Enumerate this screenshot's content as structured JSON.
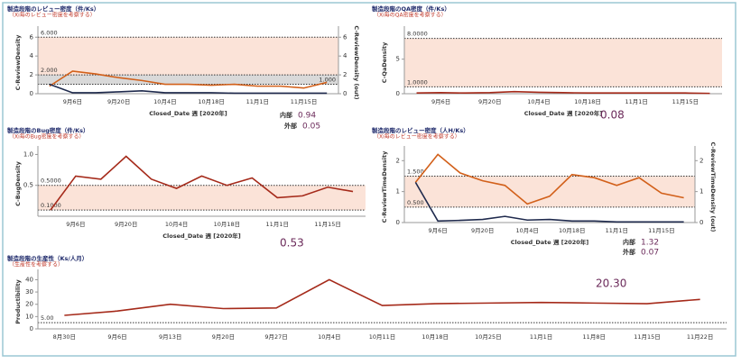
{
  "chart_data": [
    {
      "type": "line",
      "title": "製造段階のレビュー密度（件/Ks）",
      "subtitle": "（Xi毎のレビュー密度を考察する）",
      "ylabel": "C-ReviewDensity",
      "y2label": "C-ReviewDensity (out)",
      "xlabel": "Closed_Date 週 [2020年]",
      "categories": [
        null,
        "9月6日",
        null,
        "9月20日",
        null,
        "10月4日",
        null,
        "10月18日",
        null,
        "11月1日",
        null,
        "11月15日",
        null
      ],
      "series": [
        {
          "color": "#d2601a",
          "axis": "y2",
          "values": [
            0.8,
            2.4,
            2.1,
            1.7,
            1.4,
            1.0,
            1.0,
            0.9,
            1.0,
            0.8,
            0.8,
            0.6,
            1.2
          ]
        },
        {
          "color": "#1f2a4d",
          "values": [
            1.0,
            0.1,
            0.1,
            0.2,
            0.3,
            0.1,
            0.1,
            0.1,
            0.05,
            0.05,
            0.05,
            0.05,
            0.05
          ]
        }
      ],
      "ylim": [
        0,
        6.6
      ],
      "yticks": [
        0,
        2,
        4,
        6
      ],
      "y2lim": [
        0,
        6.6
      ],
      "y2ticks": [
        0,
        2,
        4,
        6
      ],
      "ref_bands": [
        {
          "axis": "y2",
          "color": "#d9d9d9",
          "lines": [
            {
              "value": 3,
              "label": "3.000"
            },
            {
              "value": 1,
              "label": "1.000"
            }
          ]
        },
        {
          "axis": "y",
          "color": "#fbe3d8",
          "lines": [
            {
              "value": 6,
              "label": "6.000"
            },
            {
              "value": 2,
              "label": "2.000"
            }
          ]
        }
      ],
      "annotations": [
        {
          "label": "内部",
          "text": "0.94"
        },
        {
          "label": "外部",
          "text": "0.05"
        }
      ]
    },
    {
      "type": "line",
      "title": "製造段階のQA密度（件/Ks）",
      "subtitle": "（Xi毎のQA密度を考察する）",
      "ylabel": "C-QaDensity",
      "xlabel": "Closed_Date 週 [2020年]",
      "categories": [
        null,
        "9月6日",
        null,
        "9月20日",
        null,
        "10月4日",
        null,
        "10月18日",
        null,
        "11月1日",
        null,
        "11月15日",
        null
      ],
      "series": [
        {
          "color": "#a52a1a",
          "values": [
            0.1,
            0.15,
            0.1,
            0.15,
            0.3,
            0.2,
            0.15,
            0.1,
            0.1,
            0.1,
            0.1,
            0.1,
            0.05
          ]
        }
      ],
      "ylim": [
        0,
        9
      ],
      "yticks": [
        0,
        5
      ],
      "ref_bands": [
        {
          "axis": "y",
          "color": "#fbe3d8",
          "lines": [
            {
              "value": 8,
              "label": "8.0000"
            },
            {
              "value": 1,
              "label": "1.0000"
            }
          ]
        }
      ],
      "annotations": [
        {
          "text": "0.08"
        }
      ]
    },
    {
      "type": "line",
      "title": "製造段階のBug密度（件/Ks）",
      "subtitle": "（Xi毎のBug密度を考察する）",
      "ylabel": "C-BugDensity",
      "xlabel": "Closed_Date 週 [2020年]",
      "categories": [
        null,
        "9月6日",
        null,
        "9月20日",
        null,
        "10月4日",
        null,
        "10月18日",
        null,
        "11月1日",
        null,
        "11月15日",
        null
      ],
      "series": [
        {
          "color": "#a52a1a",
          "values": [
            0.1,
            0.65,
            0.6,
            0.97,
            0.6,
            0.45,
            0.65,
            0.5,
            0.62,
            0.3,
            0.33,
            0.47,
            0.4
          ]
        }
      ],
      "ylim": [
        0,
        1.05
      ],
      "yticks": [
        0.5,
        {
          "value": 1,
          "label": "1.0"
        }
      ],
      "ref_bands": [
        {
          "axis": "y",
          "color": "#fbe3d8",
          "lines": [
            {
              "value": 0.5,
              "label": "0.5000"
            },
            {
              "value": 0.1,
              "label": "0.1000"
            }
          ]
        }
      ],
      "annotations": [
        {
          "text": "0.53"
        }
      ]
    },
    {
      "type": "line",
      "title": "製造段階のレビュー密度（人H/Ks）",
      "subtitle": "（Xi毎のレビュー密度を考察する）",
      "ylabel": "C-ReviewTimeDensity",
      "y2label": "C-ReviewTimeDensity (out)",
      "xlabel": "Closed_Date 週 [2020年]",
      "categories": [
        null,
        "9月6日",
        null,
        "9月20日",
        null,
        "10月4日",
        null,
        "10月18日",
        null,
        "11月1日",
        null,
        "11月15日",
        null
      ],
      "series": [
        {
          "color": "#d2601a",
          "axis": "y2",
          "values": [
            1.3,
            2.2,
            1.6,
            1.35,
            1.2,
            0.6,
            0.85,
            1.55,
            1.45,
            1.2,
            1.45,
            0.95,
            0.8
          ]
        },
        {
          "color": "#1f2a4d",
          "values": [
            1.3,
            0.05,
            0.07,
            0.1,
            0.2,
            0.08,
            0.1,
            0.05,
            0.05,
            0.02,
            0.02,
            0.02,
            0.02
          ]
        }
      ],
      "ylim": [
        0,
        2.3
      ],
      "yticks": [
        0,
        1,
        2
      ],
      "y2lim": [
        0,
        2.3
      ],
      "y2ticks": [
        0,
        1,
        2
      ],
      "ref_bands": [
        {
          "axis": "y",
          "color": "#fbe3d8",
          "lines": [
            {
              "value": 1.5,
              "label": "1.500"
            },
            {
              "value": 0.5,
              "label": "0.500"
            }
          ]
        }
      ],
      "annotations": [
        {
          "label": "内部",
          "text": "1.32"
        },
        {
          "label": "外部",
          "text": "0.07"
        }
      ]
    },
    {
      "type": "line",
      "title": "製造段階の生産性（Ks/人月）",
      "subtitle": "（生産性を考察する）",
      "ylabel": "Productibility",
      "categories": [
        "8月30日",
        "9月6日",
        "9月13日",
        "9月20日",
        "9月27日",
        "10月4日",
        "10月11日",
        "10月18日",
        "10月25日",
        "11月1日",
        "11月8日",
        "11月15日",
        "11月22日"
      ],
      "series": [
        {
          "color": "#a52a1a",
          "values": [
            11,
            14.5,
            20,
            16.5,
            17,
            40,
            19,
            20.5,
            21,
            21.5,
            21,
            20.5,
            24
          ]
        }
      ],
      "ylim": [
        0,
        44
      ],
      "yticks": [
        0,
        10,
        20,
        30,
        40
      ],
      "ref_bands": [
        {
          "axis": "y",
          "color": "none",
          "lines": [
            {
              "value": 5,
              "label": "5.00"
            }
          ]
        }
      ],
      "annotations": [
        {
          "text": "20.30"
        }
      ]
    }
  ]
}
